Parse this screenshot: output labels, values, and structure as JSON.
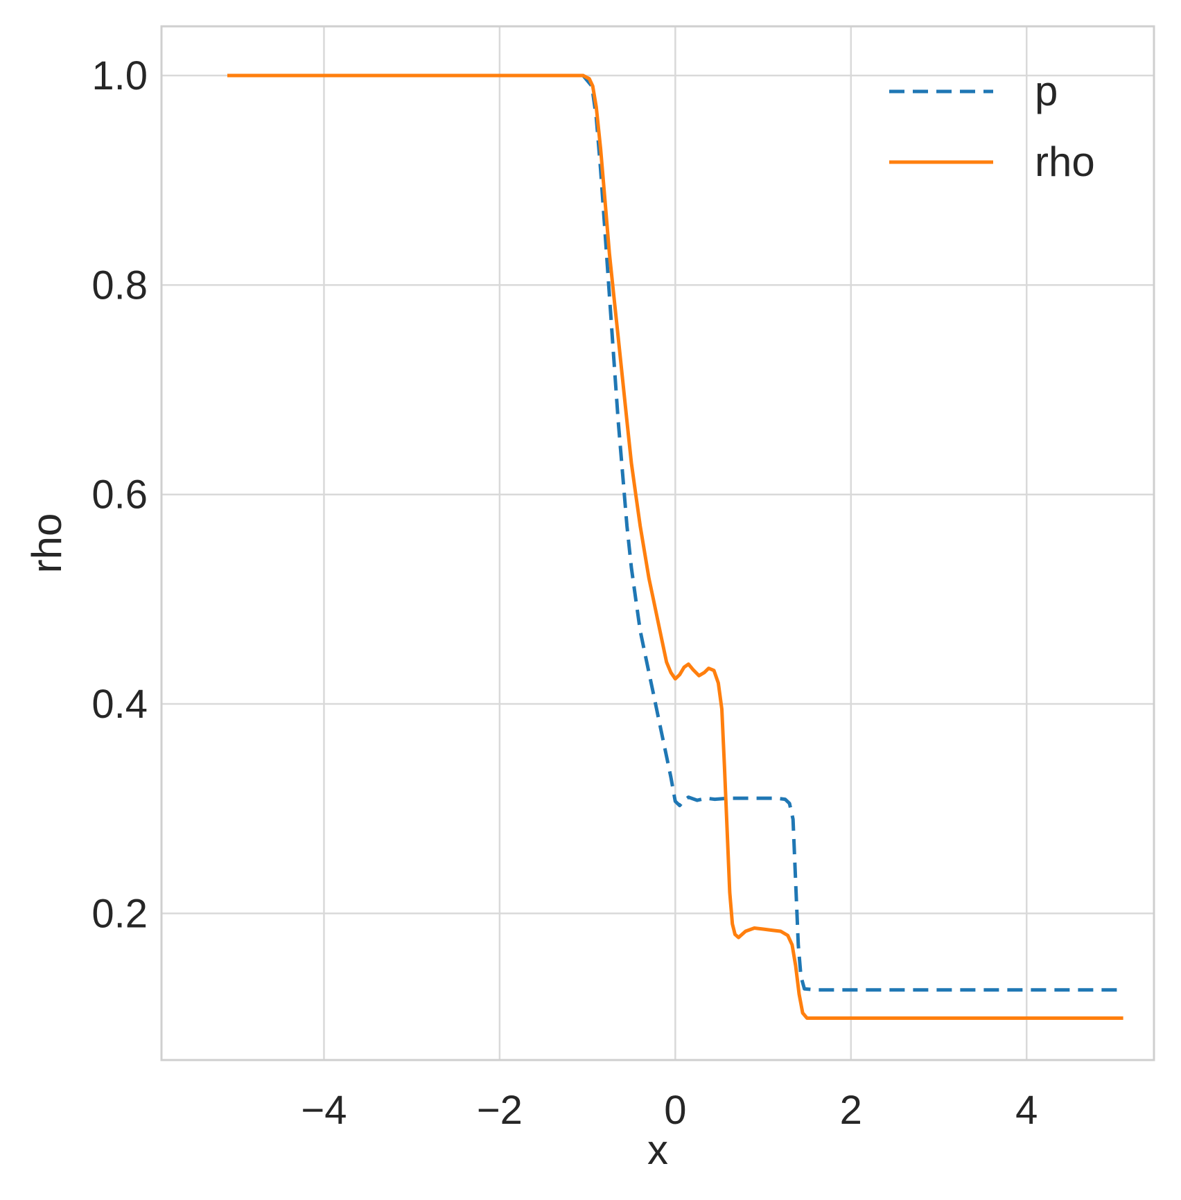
{
  "chart_data": {
    "type": "line",
    "xlabel": "x",
    "ylabel": "rho",
    "xlim": [
      -5.85,
      5.45
    ],
    "ylim": [
      0.06,
      1.047
    ],
    "xticks": [
      -4,
      -2,
      0,
      2,
      4
    ],
    "xtick_labels": [
      "−4",
      "−2",
      "0",
      "2",
      "4"
    ],
    "yticks": [
      0.2,
      0.4,
      0.6,
      0.8,
      1.0
    ],
    "ytick_labels": [
      "0.2",
      "0.4",
      "0.6",
      "0.8",
      "1.0"
    ],
    "grid": true,
    "legend_position": "top-right",
    "series": [
      {
        "name": "p",
        "style": "dashed",
        "color": "#1f77b4",
        "points": [
          [
            -5.1,
            1.0
          ],
          [
            -1.2,
            1.0
          ],
          [
            -1.05,
            1.0
          ],
          [
            -0.95,
            0.99
          ],
          [
            -0.9,
            0.96
          ],
          [
            -0.85,
            0.91
          ],
          [
            -0.8,
            0.85
          ],
          [
            -0.75,
            0.79
          ],
          [
            -0.7,
            0.73
          ],
          [
            -0.65,
            0.67
          ],
          [
            -0.6,
            0.62
          ],
          [
            -0.55,
            0.57
          ],
          [
            -0.5,
            0.53
          ],
          [
            -0.45,
            0.5
          ],
          [
            -0.4,
            0.47
          ],
          [
            -0.35,
            0.45
          ],
          [
            -0.3,
            0.43
          ],
          [
            -0.25,
            0.41
          ],
          [
            -0.2,
            0.39
          ],
          [
            -0.15,
            0.37
          ],
          [
            -0.1,
            0.35
          ],
          [
            -0.05,
            0.33
          ],
          [
            0.0,
            0.307
          ],
          [
            0.05,
            0.303
          ],
          [
            0.1,
            0.308
          ],
          [
            0.15,
            0.311
          ],
          [
            0.25,
            0.308
          ],
          [
            0.35,
            0.31
          ],
          [
            0.45,
            0.309
          ],
          [
            0.6,
            0.31
          ],
          [
            0.8,
            0.31
          ],
          [
            1.0,
            0.31
          ],
          [
            1.15,
            0.31
          ],
          [
            1.25,
            0.309
          ],
          [
            1.3,
            0.305
          ],
          [
            1.34,
            0.29
          ],
          [
            1.37,
            0.23
          ],
          [
            1.4,
            0.17
          ],
          [
            1.43,
            0.14
          ],
          [
            1.47,
            0.128
          ],
          [
            1.6,
            0.127
          ],
          [
            3.0,
            0.127
          ],
          [
            5.1,
            0.127
          ]
        ]
      },
      {
        "name": "rho",
        "style": "solid",
        "color": "#ff7f0e",
        "points": [
          [
            -5.1,
            1.0
          ],
          [
            -1.15,
            1.0
          ],
          [
            -1.05,
            1.0
          ],
          [
            -0.98,
            0.997
          ],
          [
            -0.94,
            0.99
          ],
          [
            -0.9,
            0.97
          ],
          [
            -0.85,
            0.93
          ],
          [
            -0.8,
            0.88
          ],
          [
            -0.75,
            0.83
          ],
          [
            -0.7,
            0.79
          ],
          [
            -0.65,
            0.75
          ],
          [
            -0.6,
            0.71
          ],
          [
            -0.55,
            0.67
          ],
          [
            -0.5,
            0.63
          ],
          [
            -0.45,
            0.6
          ],
          [
            -0.4,
            0.57
          ],
          [
            -0.35,
            0.545
          ],
          [
            -0.3,
            0.52
          ],
          [
            -0.25,
            0.5
          ],
          [
            -0.2,
            0.48
          ],
          [
            -0.15,
            0.46
          ],
          [
            -0.1,
            0.44
          ],
          [
            -0.05,
            0.43
          ],
          [
            0.0,
            0.424
          ],
          [
            0.05,
            0.428
          ],
          [
            0.1,
            0.435
          ],
          [
            0.15,
            0.438
          ],
          [
            0.2,
            0.433
          ],
          [
            0.27,
            0.427
          ],
          [
            0.33,
            0.43
          ],
          [
            0.38,
            0.434
          ],
          [
            0.44,
            0.432
          ],
          [
            0.49,
            0.42
          ],
          [
            0.53,
            0.395
          ],
          [
            0.56,
            0.34
          ],
          [
            0.59,
            0.28
          ],
          [
            0.62,
            0.22
          ],
          [
            0.65,
            0.19
          ],
          [
            0.68,
            0.18
          ],
          [
            0.72,
            0.177
          ],
          [
            0.8,
            0.183
          ],
          [
            0.9,
            0.186
          ],
          [
            1.0,
            0.185
          ],
          [
            1.1,
            0.184
          ],
          [
            1.2,
            0.183
          ],
          [
            1.28,
            0.179
          ],
          [
            1.33,
            0.17
          ],
          [
            1.37,
            0.15
          ],
          [
            1.41,
            0.123
          ],
          [
            1.45,
            0.105
          ],
          [
            1.5,
            0.1
          ],
          [
            1.6,
            0.1
          ],
          [
            3.0,
            0.1
          ],
          [
            5.1,
            0.1
          ]
        ]
      }
    ]
  }
}
